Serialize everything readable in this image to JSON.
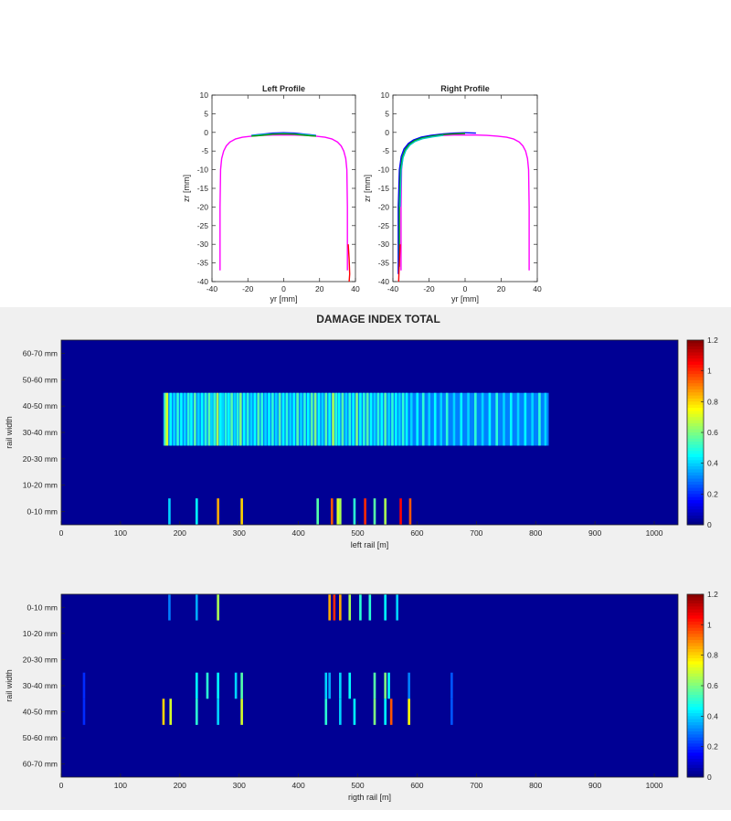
{
  "figure": {
    "title": "DAMAGE INDEX TOTAL",
    "colormap": "jet",
    "colors": {
      "background_fill": "#00008f",
      "panel_bg": "#f0f0f0"
    }
  },
  "chart_data": [
    {
      "type": "line",
      "title": "Left Profile",
      "xlabel": "yr [mm]",
      "ylabel": "zr [mm]",
      "xlim": [
        -40,
        40
      ],
      "ylim": [
        -40,
        10
      ],
      "xticks": [
        "-40",
        "-20",
        "0",
        "20",
        "40"
      ],
      "yticks": [
        "10",
        "5",
        "0",
        "-5",
        "-10",
        "-15",
        "-20",
        "-25",
        "-30",
        "-35",
        "-40"
      ],
      "series": [
        {
          "color": "#ff00ff",
          "x": [
            -35.5,
            -35.5,
            -35.2,
            -34.6,
            -33.5,
            -32,
            -30,
            -27,
            -23,
            -18,
            -12,
            -6,
            0,
            6,
            12,
            18,
            23,
            27,
            30,
            32,
            33.5,
            34.6,
            35.2,
            35.5,
            35.5
          ],
          "y": [
            -37,
            -20,
            -10,
            -7,
            -5,
            -3.6,
            -2.6,
            -1.8,
            -1.3,
            -1.0,
            -0.8,
            -0.7,
            -0.7,
            -0.7,
            -0.8,
            -1.0,
            -1.3,
            -1.8,
            -2.6,
            -3.6,
            -5,
            -7,
            -10,
            -20,
            -37
          ]
        },
        {
          "color": "#0000ff",
          "x": [
            -18,
            -12,
            -6,
            0,
            6,
            12,
            18
          ],
          "y": [
            -0.8,
            -0.5,
            -0.2,
            -0.1,
            -0.2,
            -0.5,
            -0.8
          ]
        },
        {
          "color": "#00c8c8",
          "x": [
            -18,
            -12,
            -6,
            0,
            6,
            12,
            18
          ],
          "y": [
            -0.9,
            -0.6,
            -0.4,
            -0.3,
            -0.4,
            -0.6,
            -0.9
          ]
        },
        {
          "color": "#00a000",
          "x": [
            -18,
            -12,
            -6,
            0,
            6,
            12,
            18
          ],
          "y": [
            -1.0,
            -0.8,
            -0.5,
            -0.4,
            -0.5,
            -0.8,
            -1.0
          ]
        },
        {
          "color": "#ff0000",
          "x": [
            36,
            36.5,
            36.8,
            36.5
          ],
          "y": [
            -30,
            -34,
            -38,
            -40
          ]
        }
      ]
    },
    {
      "type": "line",
      "title": "Right Profile",
      "xlabel": "yr [mm]",
      "ylabel": "zr [mm]",
      "xlim": [
        -40,
        40
      ],
      "ylim": [
        -40,
        10
      ],
      "xticks": [
        "-40",
        "-20",
        "0",
        "20",
        "40"
      ],
      "yticks": [
        "10",
        "5",
        "0",
        "-5",
        "-10",
        "-15",
        "-20",
        "-25",
        "-30",
        "-35",
        "-40"
      ],
      "series": [
        {
          "color": "#ff00ff",
          "x": [
            -35.5,
            -35.5,
            -35.2,
            -34.6,
            -33.5,
            -32,
            -30,
            -27,
            -23,
            -18,
            -12,
            -6,
            0,
            6,
            12,
            18,
            23,
            27,
            30,
            32,
            33.5,
            34.6,
            35.2,
            35.5,
            35.5
          ],
          "y": [
            -37,
            -20,
            -10,
            -7,
            -5,
            -3.6,
            -2.6,
            -1.8,
            -1.3,
            -1.0,
            -0.8,
            -0.7,
            -0.7,
            -0.7,
            -0.8,
            -1.0,
            -1.3,
            -1.8,
            -2.6,
            -3.6,
            -5,
            -7,
            -10,
            -20,
            -37
          ]
        },
        {
          "color": "#0000ff",
          "x": [
            -37,
            -37,
            -36.4,
            -35.4,
            -33.8,
            -31.5,
            -28.5,
            -24.5,
            -19,
            -12,
            -6,
            0,
            6
          ],
          "y": [
            -38,
            -20,
            -10,
            -6.5,
            -4.4,
            -3,
            -2,
            -1.3,
            -0.8,
            -0.4,
            -0.2,
            -0.1,
            -0.2
          ]
        },
        {
          "color": "#00a000",
          "x": [
            -36.4,
            -36.4,
            -35.8,
            -34.8,
            -33.2,
            -31,
            -28,
            -24,
            -18.5,
            -12,
            -6,
            0
          ],
          "y": [
            -36,
            -20,
            -10,
            -6.7,
            -4.6,
            -3.2,
            -2.2,
            -1.5,
            -1.0,
            -0.6,
            -0.4,
            -0.3
          ]
        },
        {
          "color": "#00c8c8",
          "x": [
            -36,
            -35.4,
            -34.4,
            -32.8,
            -30.6,
            -27.6,
            -23.6,
            -18,
            -12
          ],
          "y": [
            -20,
            -10,
            -6.8,
            -4.8,
            -3.4,
            -2.4,
            -1.7,
            -1.2,
            -0.8
          ]
        },
        {
          "color": "#ff0000",
          "x": [
            -36,
            -36.3,
            -36.6,
            -36.8
          ],
          "y": [
            -30,
            -34,
            -37,
            -40
          ]
        }
      ]
    },
    {
      "type": "heatmap",
      "title": "DAMAGE INDEX TOTAL",
      "xlabel": "left rail [m]",
      "ylabel": "rail width",
      "xlim": [
        0,
        1040
      ],
      "xticks": [
        "0",
        "100",
        "200",
        "300",
        "400",
        "500",
        "600",
        "700",
        "800",
        "900",
        "1000"
      ],
      "rows": [
        "60-70 mm",
        "50-60 mm",
        "40-50 mm",
        "30-40 mm",
        "20-30 mm",
        "10-20 mm",
        "0-10 mm"
      ],
      "clim": [
        0,
        1.2
      ],
      "colorbar_ticks": [
        "1.2",
        "1",
        "0.8",
        "0.6",
        "0.4",
        "0.2",
        "0"
      ],
      "band_rows": [
        2,
        3
      ],
      "band_x": [
        172,
        822
      ],
      "band_value": 0.25,
      "band_cells": [
        [
          175,
          0.55
        ],
        [
          178,
          0.7
        ],
        [
          184,
          0.45
        ],
        [
          190,
          0.4
        ],
        [
          196,
          0.5
        ],
        [
          202,
          0.45
        ],
        [
          208,
          0.4
        ],
        [
          214,
          0.5
        ],
        [
          219,
          0.45
        ],
        [
          225,
          0.55
        ],
        [
          231,
          0.4
        ],
        [
          237,
          0.45
        ],
        [
          243,
          0.5
        ],
        [
          249,
          0.55
        ],
        [
          253,
          0.4
        ],
        [
          258,
          0.5
        ],
        [
          263,
          0.65
        ],
        [
          268,
          0.45
        ],
        [
          272,
          0.4
        ],
        [
          277,
          0.5
        ],
        [
          282,
          0.45
        ],
        [
          287,
          0.55
        ],
        [
          292,
          0.4
        ],
        [
          297,
          0.5
        ],
        [
          302,
          0.6
        ],
        [
          308,
          0.45
        ],
        [
          314,
          0.5
        ],
        [
          320,
          0.4
        ],
        [
          326,
          0.45
        ],
        [
          332,
          0.55
        ],
        [
          338,
          0.5
        ],
        [
          344,
          0.4
        ],
        [
          350,
          0.45
        ],
        [
          356,
          0.5
        ],
        [
          362,
          0.4
        ],
        [
          368,
          0.55
        ],
        [
          374,
          0.45
        ],
        [
          380,
          0.5
        ],
        [
          386,
          0.4
        ],
        [
          392,
          0.45
        ],
        [
          398,
          0.55
        ],
        [
          404,
          0.4
        ],
        [
          410,
          0.5
        ],
        [
          416,
          0.45
        ],
        [
          422,
          0.55
        ],
        [
          428,
          0.6
        ],
        [
          434,
          0.45
        ],
        [
          440,
          0.4
        ],
        [
          446,
          0.55
        ],
        [
          452,
          0.45
        ],
        [
          458,
          0.65
        ],
        [
          463,
          0.5
        ],
        [
          468,
          0.45
        ],
        [
          474,
          0.55
        ],
        [
          480,
          0.4
        ],
        [
          486,
          0.5
        ],
        [
          492,
          0.45
        ],
        [
          498,
          0.6
        ],
        [
          504,
          0.45
        ],
        [
          510,
          0.5
        ],
        [
          516,
          0.55
        ],
        [
          522,
          0.45
        ],
        [
          528,
          0.4
        ],
        [
          534,
          0.5
        ],
        [
          540,
          0.45
        ],
        [
          546,
          0.55
        ],
        [
          552,
          0.4
        ],
        [
          558,
          0.5
        ],
        [
          564,
          0.45
        ],
        [
          570,
          0.4
        ],
        [
          576,
          0.5
        ],
        [
          582,
          0.45
        ],
        [
          590,
          0.4
        ],
        [
          600,
          0.45
        ],
        [
          610,
          0.5
        ],
        [
          620,
          0.4
        ],
        [
          630,
          0.45
        ],
        [
          640,
          0.4
        ],
        [
          650,
          0.5
        ],
        [
          662,
          0.4
        ],
        [
          674,
          0.45
        ],
        [
          686,
          0.4
        ],
        [
          698,
          0.5
        ],
        [
          710,
          0.4
        ],
        [
          722,
          0.45
        ],
        [
          734,
          0.5
        ],
        [
          746,
          0.4
        ],
        [
          758,
          0.45
        ],
        [
          770,
          0.4
        ],
        [
          782,
          0.45
        ],
        [
          794,
          0.4
        ],
        [
          806,
          0.5
        ],
        [
          816,
          0.4
        ]
      ],
      "cells": [
        [
          182,
          6,
          0.4
        ],
        [
          228,
          6,
          0.45
        ],
        [
          264,
          6,
          0.85
        ],
        [
          304,
          6,
          0.8
        ],
        [
          432,
          6,
          0.55
        ],
        [
          456,
          6,
          0.95
        ],
        [
          466,
          6,
          0.7
        ],
        [
          470,
          6,
          0.65
        ],
        [
          494,
          6,
          0.5
        ],
        [
          512,
          6,
          1.0
        ],
        [
          528,
          6,
          0.55
        ],
        [
          546,
          6,
          0.65
        ],
        [
          572,
          6,
          1.05
        ],
        [
          588,
          6,
          0.95
        ]
      ]
    },
    {
      "type": "heatmap",
      "xlabel": "rigth rail [m]",
      "ylabel": "rail width",
      "xlim": [
        0,
        1040
      ],
      "xticks": [
        "0",
        "100",
        "200",
        "300",
        "400",
        "500",
        "600",
        "700",
        "800",
        "900",
        "1000"
      ],
      "rows": [
        "0-10 mm",
        "10-20 mm",
        "20-30 mm",
        "30-40 mm",
        "40-50 mm",
        "50-60 mm",
        "60-70 mm"
      ],
      "clim": [
        0,
        1.2
      ],
      "colorbar_ticks": [
        "1.2",
        "1",
        "0.8",
        "0.6",
        "0.4",
        "0.2",
        "0"
      ],
      "cells": [
        [
          182,
          0,
          0.3
        ],
        [
          228,
          0,
          0.35
        ],
        [
          264,
          0,
          0.65
        ],
        [
          452,
          0,
          0.85
        ],
        [
          460,
          0,
          1.0
        ],
        [
          470,
          0,
          0.85
        ],
        [
          486,
          0,
          0.65
        ],
        [
          504,
          0,
          0.5
        ],
        [
          520,
          0,
          0.5
        ],
        [
          546,
          0,
          0.45
        ],
        [
          566,
          0,
          0.4
        ],
        [
          38,
          3,
          0.2
        ],
        [
          228,
          3,
          0.45
        ],
        [
          246,
          3,
          0.5
        ],
        [
          264,
          3,
          0.45
        ],
        [
          294,
          3,
          0.4
        ],
        [
          304,
          3,
          0.55
        ],
        [
          446,
          3,
          0.4
        ],
        [
          452,
          3,
          0.35
        ],
        [
          470,
          3,
          0.4
        ],
        [
          486,
          3,
          0.45
        ],
        [
          528,
          3,
          0.55
        ],
        [
          546,
          3,
          0.6
        ],
        [
          552,
          3,
          0.45
        ],
        [
          586,
          3,
          0.3
        ],
        [
          658,
          3,
          0.25
        ],
        [
          38,
          4,
          0.2
        ],
        [
          172,
          4,
          0.8
        ],
        [
          184,
          4,
          0.7
        ],
        [
          228,
          4,
          0.5
        ],
        [
          264,
          4,
          0.4
        ],
        [
          304,
          4,
          0.7
        ],
        [
          446,
          4,
          0.5
        ],
        [
          470,
          4,
          0.4
        ],
        [
          494,
          4,
          0.45
        ],
        [
          528,
          4,
          0.6
        ],
        [
          546,
          4,
          0.45
        ],
        [
          556,
          4,
          0.95
        ],
        [
          586,
          4,
          0.75
        ],
        [
          658,
          4,
          0.25
        ]
      ]
    }
  ]
}
